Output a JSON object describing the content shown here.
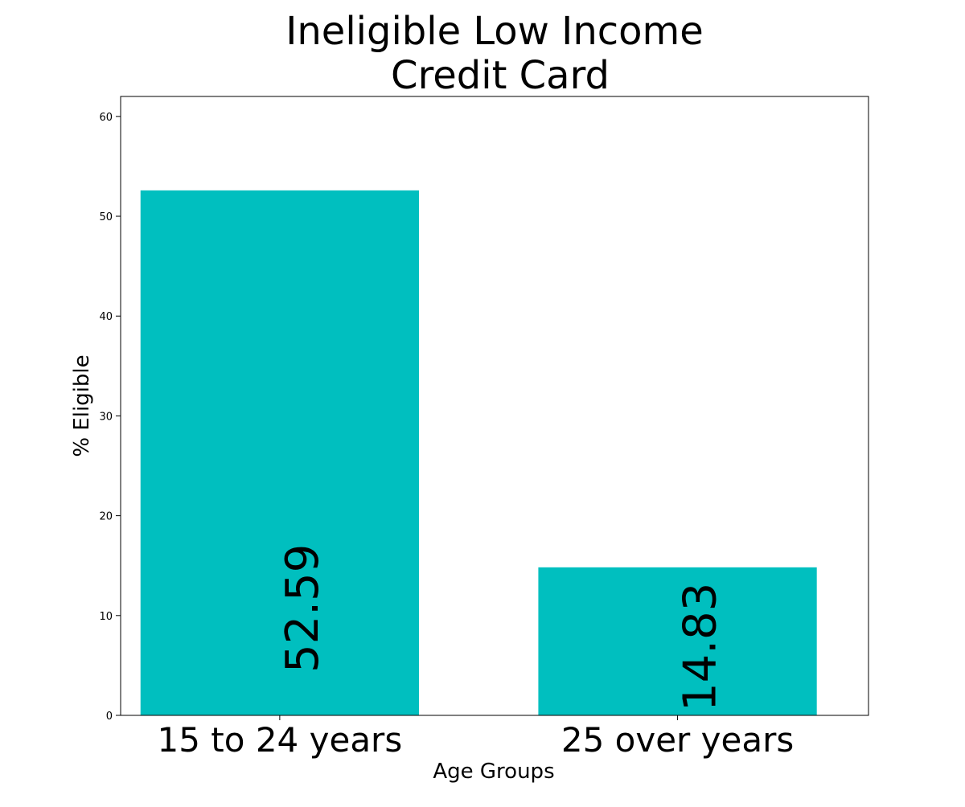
{
  "chart_data": {
    "type": "bar",
    "title_lines": [
      "Ineligible Low Income",
      "Credit Card"
    ],
    "xlabel": "Age Groups",
    "ylabel": "% Eligible",
    "categories": [
      "15 to 24 years",
      "25 over years"
    ],
    "values": [
      52.59,
      14.83
    ],
    "data_labels": [
      "52.59",
      "14.83"
    ],
    "ylim": [
      0,
      62
    ],
    "yticks": [
      0,
      10,
      20,
      30,
      40,
      50,
      60
    ],
    "ytick_labels": [
      "0",
      "10",
      "20",
      "30",
      "40",
      "50",
      "60"
    ],
    "bar_color": "#00bfbf",
    "grid": false,
    "legend": "none"
  }
}
